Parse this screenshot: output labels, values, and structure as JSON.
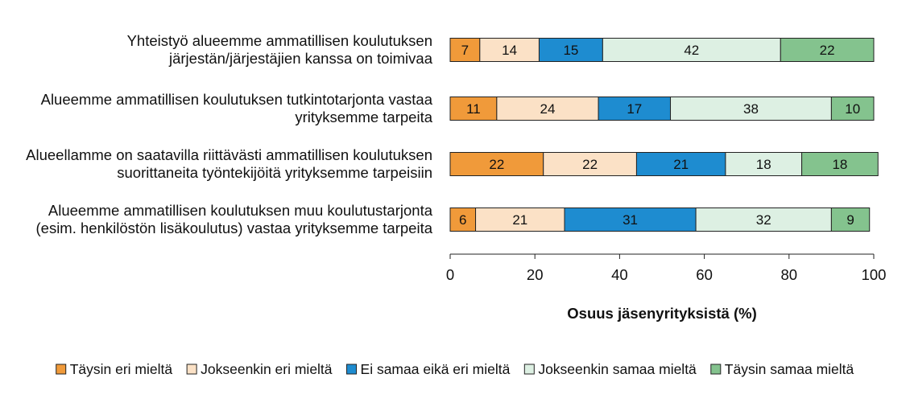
{
  "chart_data": {
    "type": "bar",
    "orientation": "horizontal",
    "stacked": true,
    "title": "",
    "xlabel": "Osuus jäsenyrityksistä (%)",
    "ylabel": "",
    "xlim": [
      0,
      100
    ],
    "xticks": [
      0,
      20,
      40,
      60,
      80,
      100
    ],
    "grid": false,
    "legend_position": "bottom",
    "categories": [
      [
        "Yhteistyö alueemme ammatillisen koulutuksen",
        "järjestän/järjestäjien kanssa on toimivaa"
      ],
      [
        "Alueemme ammatillisen koulutuksen tutkintotarjonta vastaa",
        "yrityksemme tarpeita"
      ],
      [
        "Alueellamme on saatavilla riittävästi ammatillisen koulutuksen",
        "suorittaneita työntekijöitä yrityksemme tarpeisiin"
      ],
      [
        "Alueemme ammatillisen koulutuksen muu koulutustarjonta",
        "(esim. henkilöstön lisäkoulutus) vastaa yrityksemme tarpeita"
      ]
    ],
    "series": [
      {
        "name": "Täysin eri mieltä",
        "color": "#F09A3A",
        "values": [
          7,
          11,
          22,
          6
        ]
      },
      {
        "name": "Jokseenkin eri mieltä",
        "color": "#FBE1C6",
        "values": [
          14,
          24,
          22,
          21
        ]
      },
      {
        "name": "Ei samaa eikä eri mieltä",
        "color": "#1E8CD0",
        "values": [
          15,
          17,
          21,
          31
        ]
      },
      {
        "name": "Jokseenkin samaa mieltä",
        "color": "#DDF0E3",
        "values": [
          42,
          38,
          18,
          32
        ]
      },
      {
        "name": "Täysin samaa mieltä",
        "color": "#84C38E",
        "values": [
          22,
          10,
          18,
          9
        ]
      }
    ]
  }
}
